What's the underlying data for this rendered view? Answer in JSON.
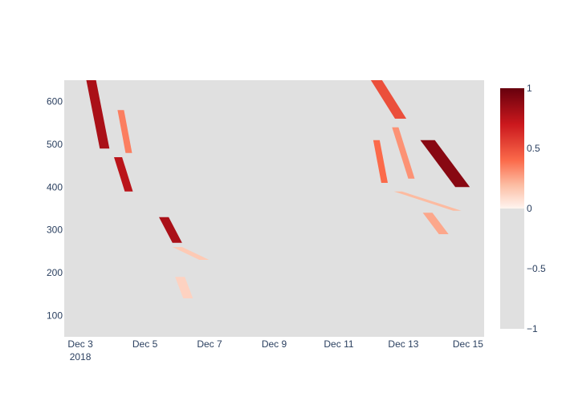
{
  "chart_data": {
    "type": "heatmap",
    "title": "",
    "xlabel": "",
    "ylabel": "",
    "x_axis": {
      "type": "date",
      "range": [
        "2018-12-02T12:00:00",
        "2018-12-15T12:00:00"
      ],
      "ticks": [
        {
          "date": "2018-12-03",
          "label": "Dec 3",
          "sublabel": "2018"
        },
        {
          "date": "2018-12-05",
          "label": "Dec 5"
        },
        {
          "date": "2018-12-07",
          "label": "Dec 7"
        },
        {
          "date": "2018-12-09",
          "label": "Dec 9"
        },
        {
          "date": "2018-12-11",
          "label": "Dec 11"
        },
        {
          "date": "2018-12-13",
          "label": "Dec 13"
        },
        {
          "date": "2018-12-15",
          "label": "Dec 15"
        }
      ]
    },
    "y_axis": {
      "range": [
        50,
        650
      ],
      "ticks": [
        100,
        200,
        300,
        400,
        500,
        600
      ]
    },
    "colorbar": {
      "zmin": -1,
      "zmax": 1,
      "ticks": [
        {
          "value": 1,
          "label": "1"
        },
        {
          "value": 0.5,
          "label": "0.5"
        },
        {
          "value": 0,
          "label": "0"
        },
        {
          "value": -0.5,
          "label": "−0.5"
        },
        {
          "value": -1,
          "label": "−1"
        }
      ],
      "colorscale": [
        [
          0,
          "#e0e0e0"
        ],
        [
          0.5,
          "#e0e0e0"
        ],
        [
          0.5,
          "#fff5f0"
        ],
        [
          0.6,
          "#fcbba1"
        ],
        [
          0.7,
          "#fb6a4a"
        ],
        [
          0.85,
          "#cb181d"
        ],
        [
          1,
          "#67000d"
        ]
      ]
    },
    "background_value": -1,
    "streaks": [
      {
        "start": "2018-12-03T08:00:00",
        "end": "2018-12-03T18:00:00",
        "ystart": 650,
        "yend": 490,
        "value": 0.8,
        "width_days": 0.3
      },
      {
        "start": "2018-12-04T06:00:00",
        "end": "2018-12-04T12:00:00",
        "ystart": 580,
        "yend": 480,
        "value": 0.35,
        "width_days": 0.2
      },
      {
        "start": "2018-12-04T04:00:00",
        "end": "2018-12-04T12:00:00",
        "ystart": 470,
        "yend": 390,
        "value": 0.75,
        "width_days": 0.25
      },
      {
        "start": "2018-12-05T14:00:00",
        "end": "2018-12-06T00:00:00",
        "ystart": 330,
        "yend": 270,
        "value": 0.8,
        "width_days": 0.3
      },
      {
        "start": "2018-12-06T00:00:00",
        "end": "2018-12-06T20:00:00",
        "ystart": 260,
        "yend": 230,
        "value": 0.15,
        "width_days": 0.3
      },
      {
        "start": "2018-12-06T02:00:00",
        "end": "2018-12-06T08:00:00",
        "ystart": 190,
        "yend": 140,
        "value": 0.12,
        "width_days": 0.3
      },
      {
        "start": "2018-12-12T04:00:00",
        "end": "2018-12-12T22:00:00",
        "ystart": 650,
        "yend": 560,
        "value": 0.5,
        "width_days": 0.35
      },
      {
        "start": "2018-12-12T04:00:00",
        "end": "2018-12-12T10:00:00",
        "ystart": 510,
        "yend": 410,
        "value": 0.4,
        "width_days": 0.2
      },
      {
        "start": "2018-12-12T18:00:00",
        "end": "2018-12-13T06:00:00",
        "ystart": 540,
        "yend": 420,
        "value": 0.3,
        "width_days": 0.2
      },
      {
        "start": "2018-12-13T18:00:00",
        "end": "2018-12-14T20:00:00",
        "ystart": 510,
        "yend": 400,
        "value": 0.9,
        "width_days": 0.45
      },
      {
        "start": "2018-12-12T20:00:00",
        "end": "2018-12-14T16:00:00",
        "ystart": 390,
        "yend": 345,
        "value": 0.2,
        "width_days": 0.25
      },
      {
        "start": "2018-12-13T18:00:00",
        "end": "2018-12-14T06:00:00",
        "ystart": 340,
        "yend": 290,
        "value": 0.25,
        "width_days": 0.3
      }
    ]
  }
}
